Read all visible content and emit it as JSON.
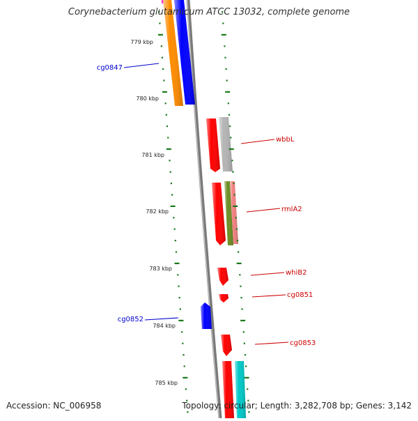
{
  "title": "Corynebacterium glutamicum ATCC 13032, complete genome",
  "accession_label": "Accession: NC_006958",
  "topology_label": "Topology: circular; Length: 3,282,708 bp; Genes: 3,142",
  "kbp_ticks": [
    "779 kbp",
    "780 kbp",
    "781 kbp",
    "782 kbp",
    "783 kbp",
    "784 kbp",
    "785 kbp"
  ],
  "gene_labels": {
    "cg0847": "cg0847",
    "wbbL": "wbbL",
    "rmlA2": "rmlA2",
    "whiB2": "whiB2",
    "cg0851": "cg0851",
    "cg0852": "cg0852",
    "cg0853": "cg0853"
  },
  "colors": {
    "label_forward": "#0000cc",
    "label_reverse": "#cc0000",
    "tick_green": "#1a7a1a",
    "backbone": "#7a7a7a",
    "red": "#ff0000",
    "blue": "#0000ff",
    "orange": "#ff8c00",
    "grey": "#b4b4b4",
    "olive": "#6b8e23",
    "pink": "#f08080",
    "cyan": "#00c8c8",
    "magenta": "#ff33cc"
  }
}
